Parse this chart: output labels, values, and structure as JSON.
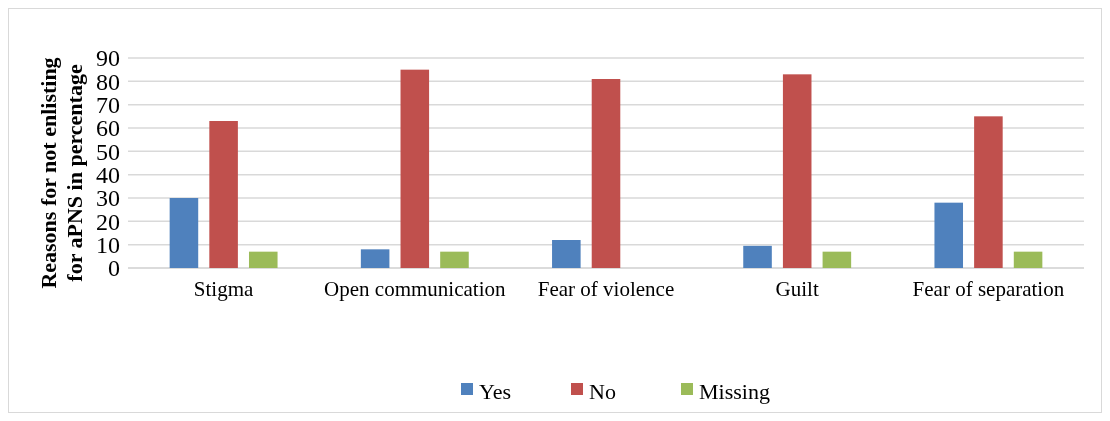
{
  "chart_data": {
    "type": "bar",
    "ylabel": "Reasons for not enlisting for aPNS in percentage",
    "categories": [
      "Stigma",
      "Open communication",
      "Fear of violence",
      "Guilt",
      "Fear of separation"
    ],
    "series": [
      {
        "name": "Yes",
        "color": "#4f81bd",
        "values": [
          30,
          8,
          12,
          9.5,
          28
        ]
      },
      {
        "name": "No",
        "color": "#c0504d",
        "values": [
          63,
          85,
          81,
          83,
          65
        ]
      },
      {
        "name": "Missing",
        "color": "#9bbb59",
        "values": [
          7,
          7,
          null,
          7,
          7
        ]
      }
    ],
    "ylim": [
      0,
      90
    ],
    "yticks": [
      0,
      10,
      20,
      30,
      40,
      50,
      60,
      70,
      80,
      90
    ],
    "grid": "y",
    "legend": "bottom"
  }
}
